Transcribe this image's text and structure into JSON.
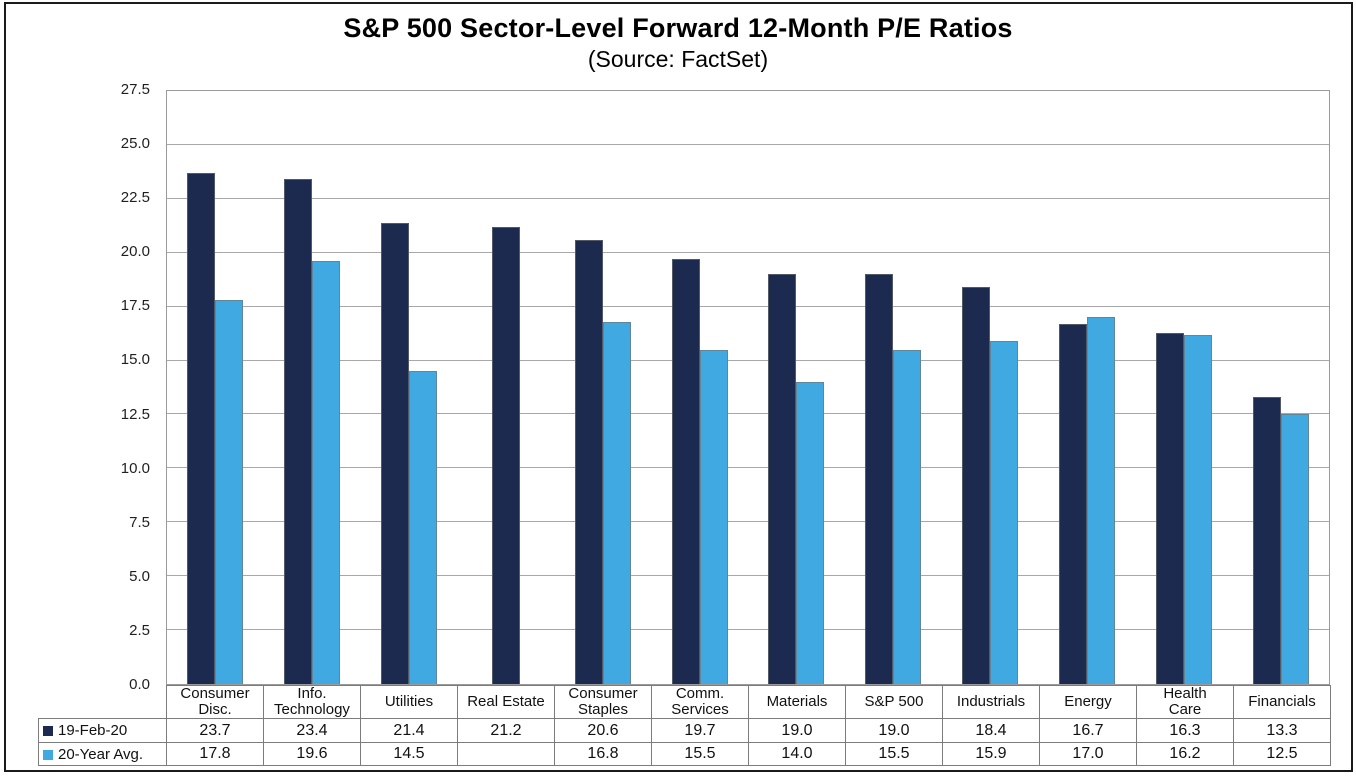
{
  "chart_data": {
    "type": "bar",
    "title": "S&P 500 Sector-Level Forward 12-Month P/E Ratios",
    "subtitle": "(Source: FactSet)",
    "categories": [
      "Consumer Disc.",
      "Info. Technology",
      "Utilities",
      "Real Estate",
      "Consumer Staples",
      "Comm. Services",
      "Materials",
      "S&P 500",
      "Industrials",
      "Energy",
      "Health Care",
      "Financials"
    ],
    "category_header_lines": [
      "Consumer\nDisc.",
      "Info.\nTechnology",
      "Utilities",
      "Real Estate",
      "Consumer\nStaples",
      "Comm.\nServices",
      "Materials",
      "S&P 500",
      "Industrials",
      "Energy",
      "Health\nCare",
      "Financials"
    ],
    "series": [
      {
        "name": "19-Feb-20",
        "color": "#1B2A4E",
        "values": [
          23.7,
          23.4,
          21.4,
          21.2,
          20.6,
          19.7,
          19.0,
          19.0,
          18.4,
          16.7,
          16.3,
          13.3
        ]
      },
      {
        "name": "20-Year Avg.",
        "color": "#41A9E1",
        "values": [
          17.8,
          19.6,
          14.5,
          null,
          16.8,
          15.5,
          14.0,
          15.5,
          15.9,
          17.0,
          16.2,
          12.5
        ]
      }
    ],
    "ylim": [
      0,
      27.5
    ],
    "ytick_step": 2.5,
    "ytick_labels": [
      "27.5",
      "25.0",
      "22.5",
      "20.0",
      "17.5",
      "15.0",
      "12.5",
      "10.0",
      "7.5",
      "5.0",
      "2.5",
      "0.0"
    ],
    "grid": true,
    "legend_position": "table-left",
    "colors": {
      "grid": "#A8A8A8",
      "plot_border": "#9A9A9A",
      "table_border": "#7C7C7C",
      "frame": "#1A1A1A"
    }
  }
}
